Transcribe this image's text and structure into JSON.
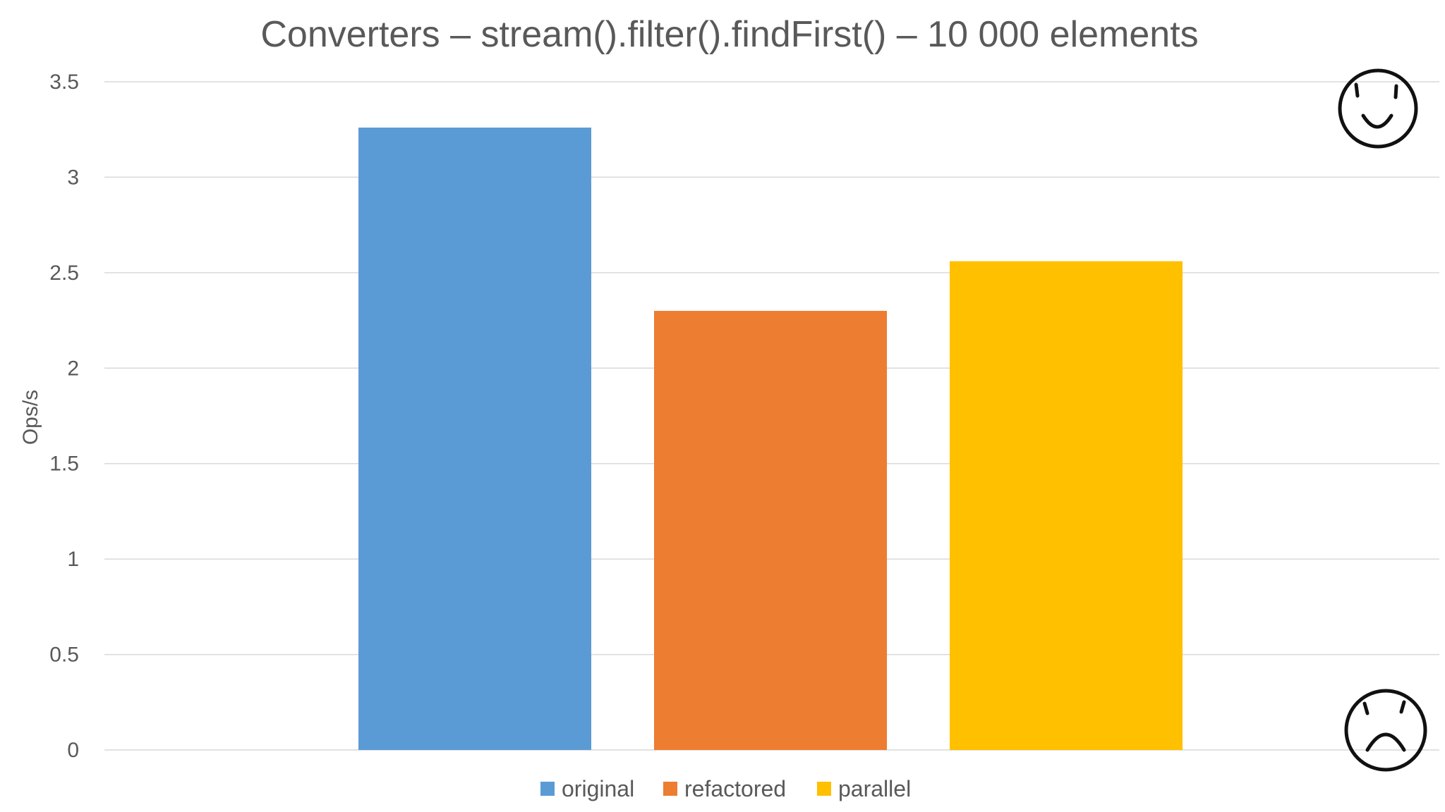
{
  "chart_data": {
    "type": "bar",
    "title": "Converters – stream().filter().findFirst() – 10 000 elements",
    "xlabel": "",
    "ylabel": "Ops/s",
    "ylim": [
      0,
      3.5
    ],
    "yticks": [
      "0",
      "0.5",
      "1",
      "1.5",
      "2",
      "2.5",
      "3",
      "3.5"
    ],
    "ytick_values": [
      0,
      0.5,
      1,
      1.5,
      2,
      2.5,
      3,
      3.5
    ],
    "grid": true,
    "legend_position": "bottom",
    "series": [
      {
        "name": "original",
        "value": 3.26,
        "color": "#5b9bd5"
      },
      {
        "name": "refactored",
        "value": 2.3,
        "color": "#ed7d31"
      },
      {
        "name": "parallel",
        "value": 2.56,
        "color": "#ffc000"
      }
    ]
  },
  "decorations": {
    "top_icon": "smiley-face-icon",
    "bottom_icon": "frowning-face-icon"
  }
}
